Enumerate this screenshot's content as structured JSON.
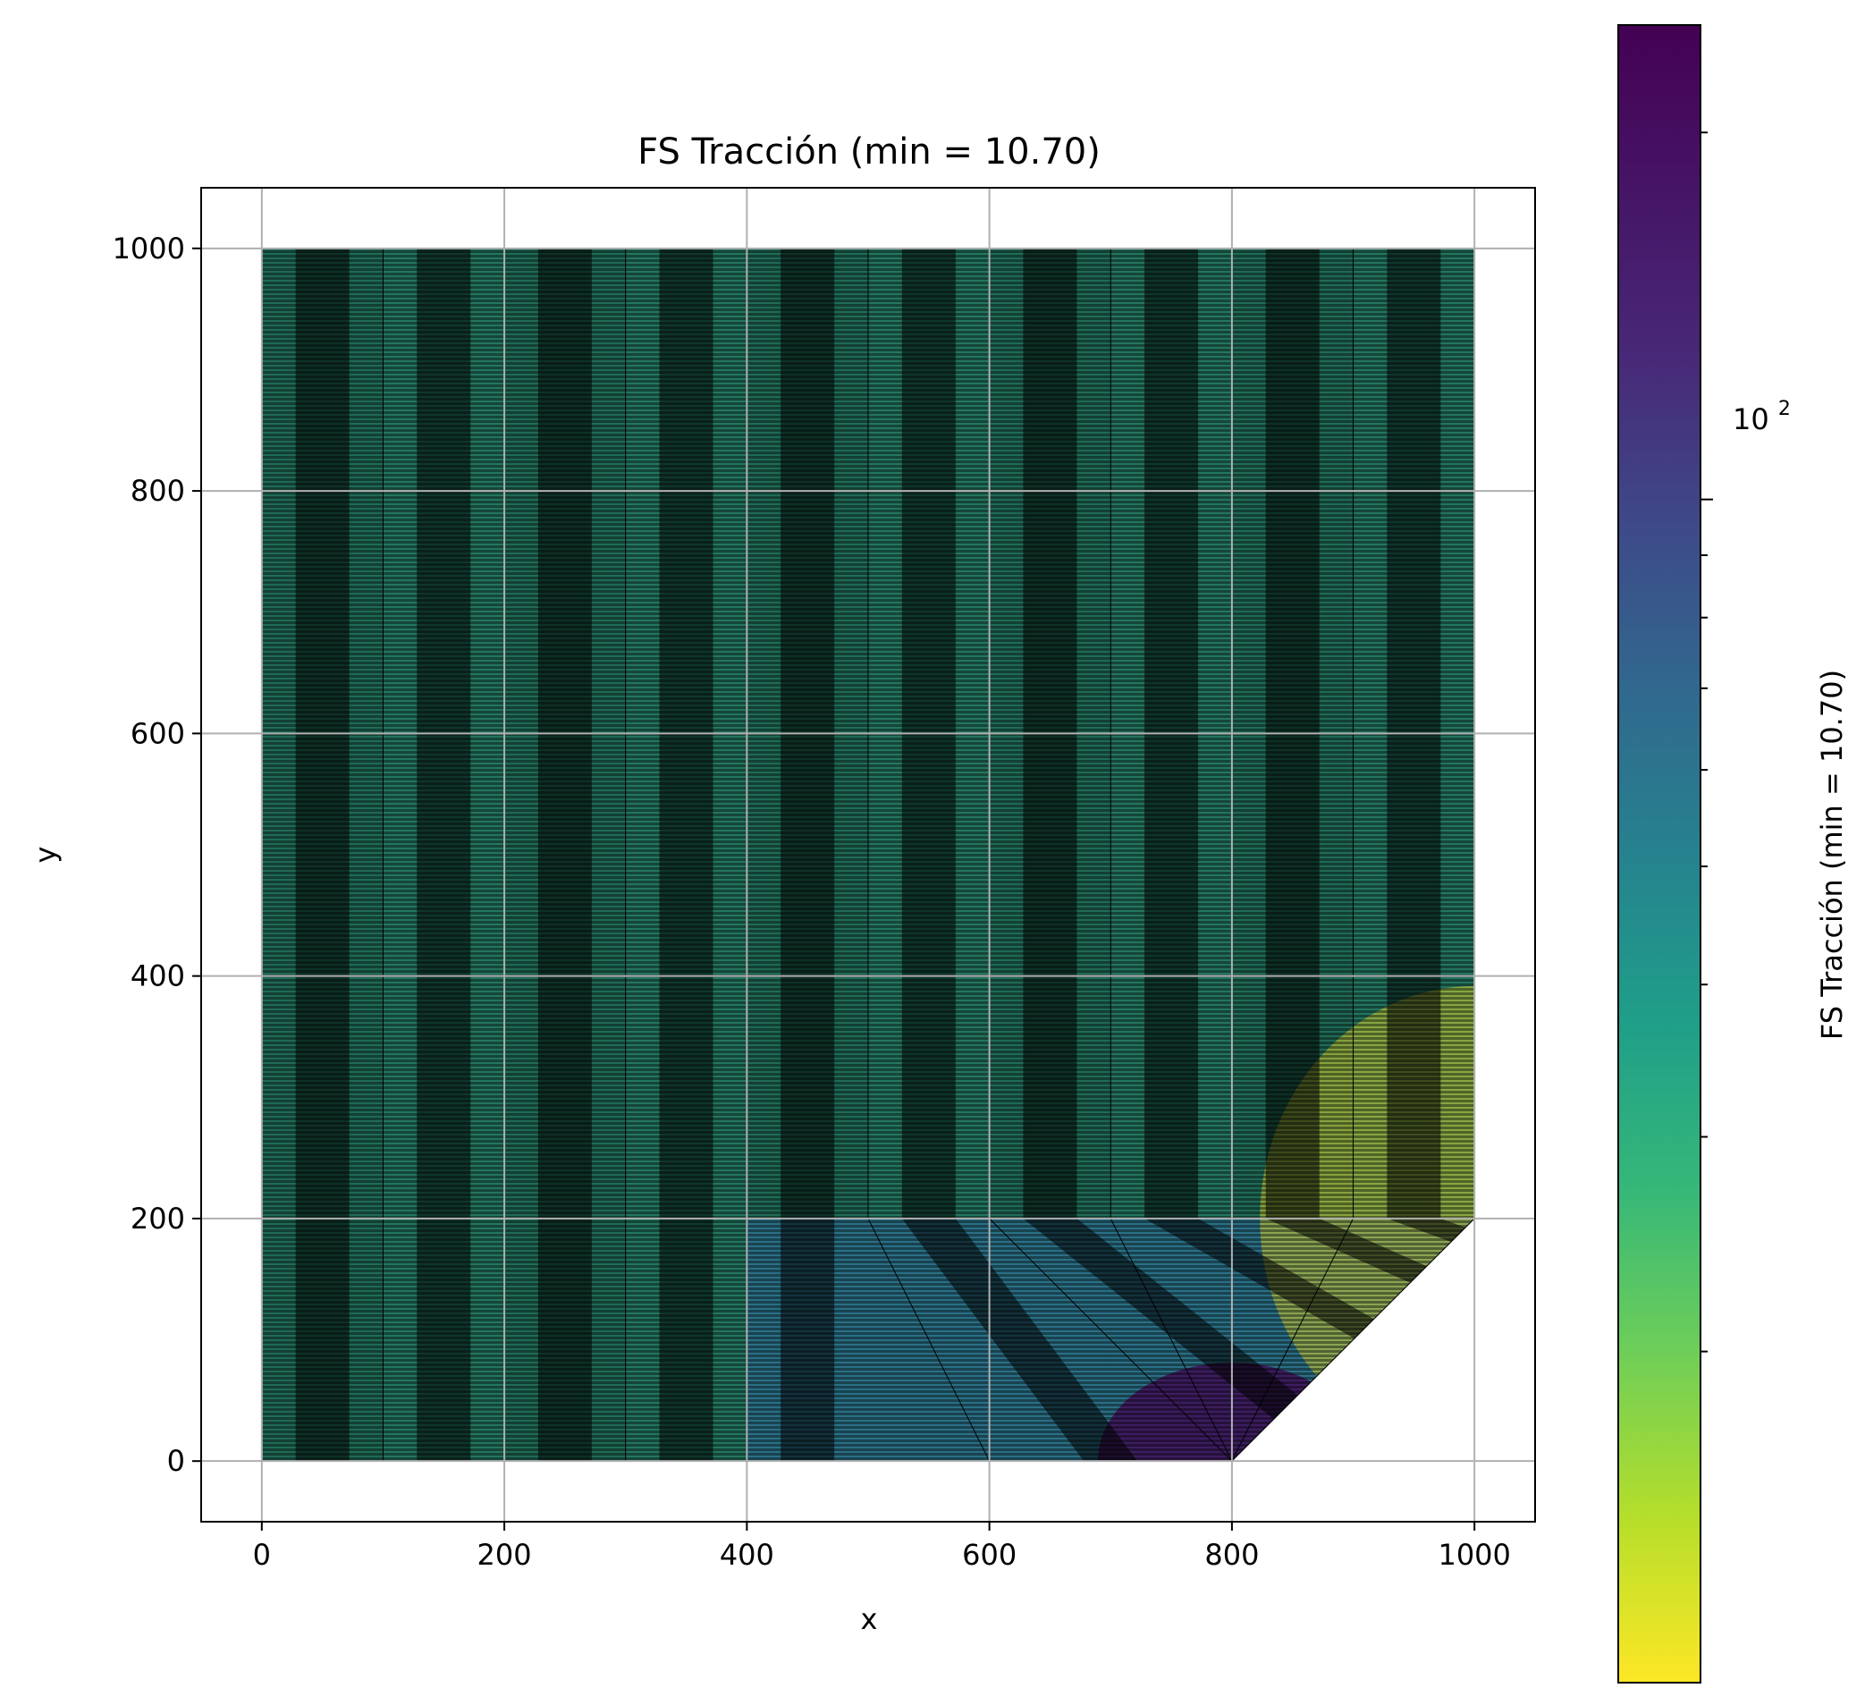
{
  "chart_data": {
    "type": "heatmap",
    "title": "FS Tracción (min = 10.70)",
    "xlabel": "x",
    "ylabel": "y",
    "xlim": [
      -50,
      1050
    ],
    "ylim": [
      -50,
      1050
    ],
    "xticks": [
      0,
      200,
      400,
      600,
      800,
      1000
    ],
    "yticks": [
      0,
      200,
      400,
      600,
      800,
      1000
    ],
    "xtick_labels": [
      "0",
      "200",
      "400",
      "600",
      "800",
      "1000"
    ],
    "ytick_labels": [
      "0",
      "200",
      "400",
      "600",
      "800",
      "1000"
    ],
    "grid": true,
    "colormap": "viridis_r",
    "mesh_edge_color": "#000000",
    "domain_outline": [
      [
        0,
        0
      ],
      [
        800,
        0
      ],
      [
        1000,
        200
      ],
      [
        1000,
        1000
      ],
      [
        0,
        1000
      ]
    ],
    "element_columns_x": [
      0,
      100,
      200,
      300,
      400,
      500,
      600,
      700,
      800,
      900,
      1000
    ],
    "element_rows_y": [
      0,
      200,
      1000
    ],
    "field_trend": "FS is mid-range (green) over most of the plate, lowest (yellow) near x=1000, y=200, highest (purple) near x=800, y=0",
    "colorbar": {
      "label": "FS Tracción (min = 10.70)",
      "scale": "log",
      "min": 10.7,
      "max": 245,
      "major_ticks": [
        100
      ],
      "major_tick_labels": [
        "10",
        "2"
      ],
      "minor_ticks": [
        20,
        30,
        40,
        50,
        60,
        70,
        80,
        90,
        200
      ]
    }
  }
}
